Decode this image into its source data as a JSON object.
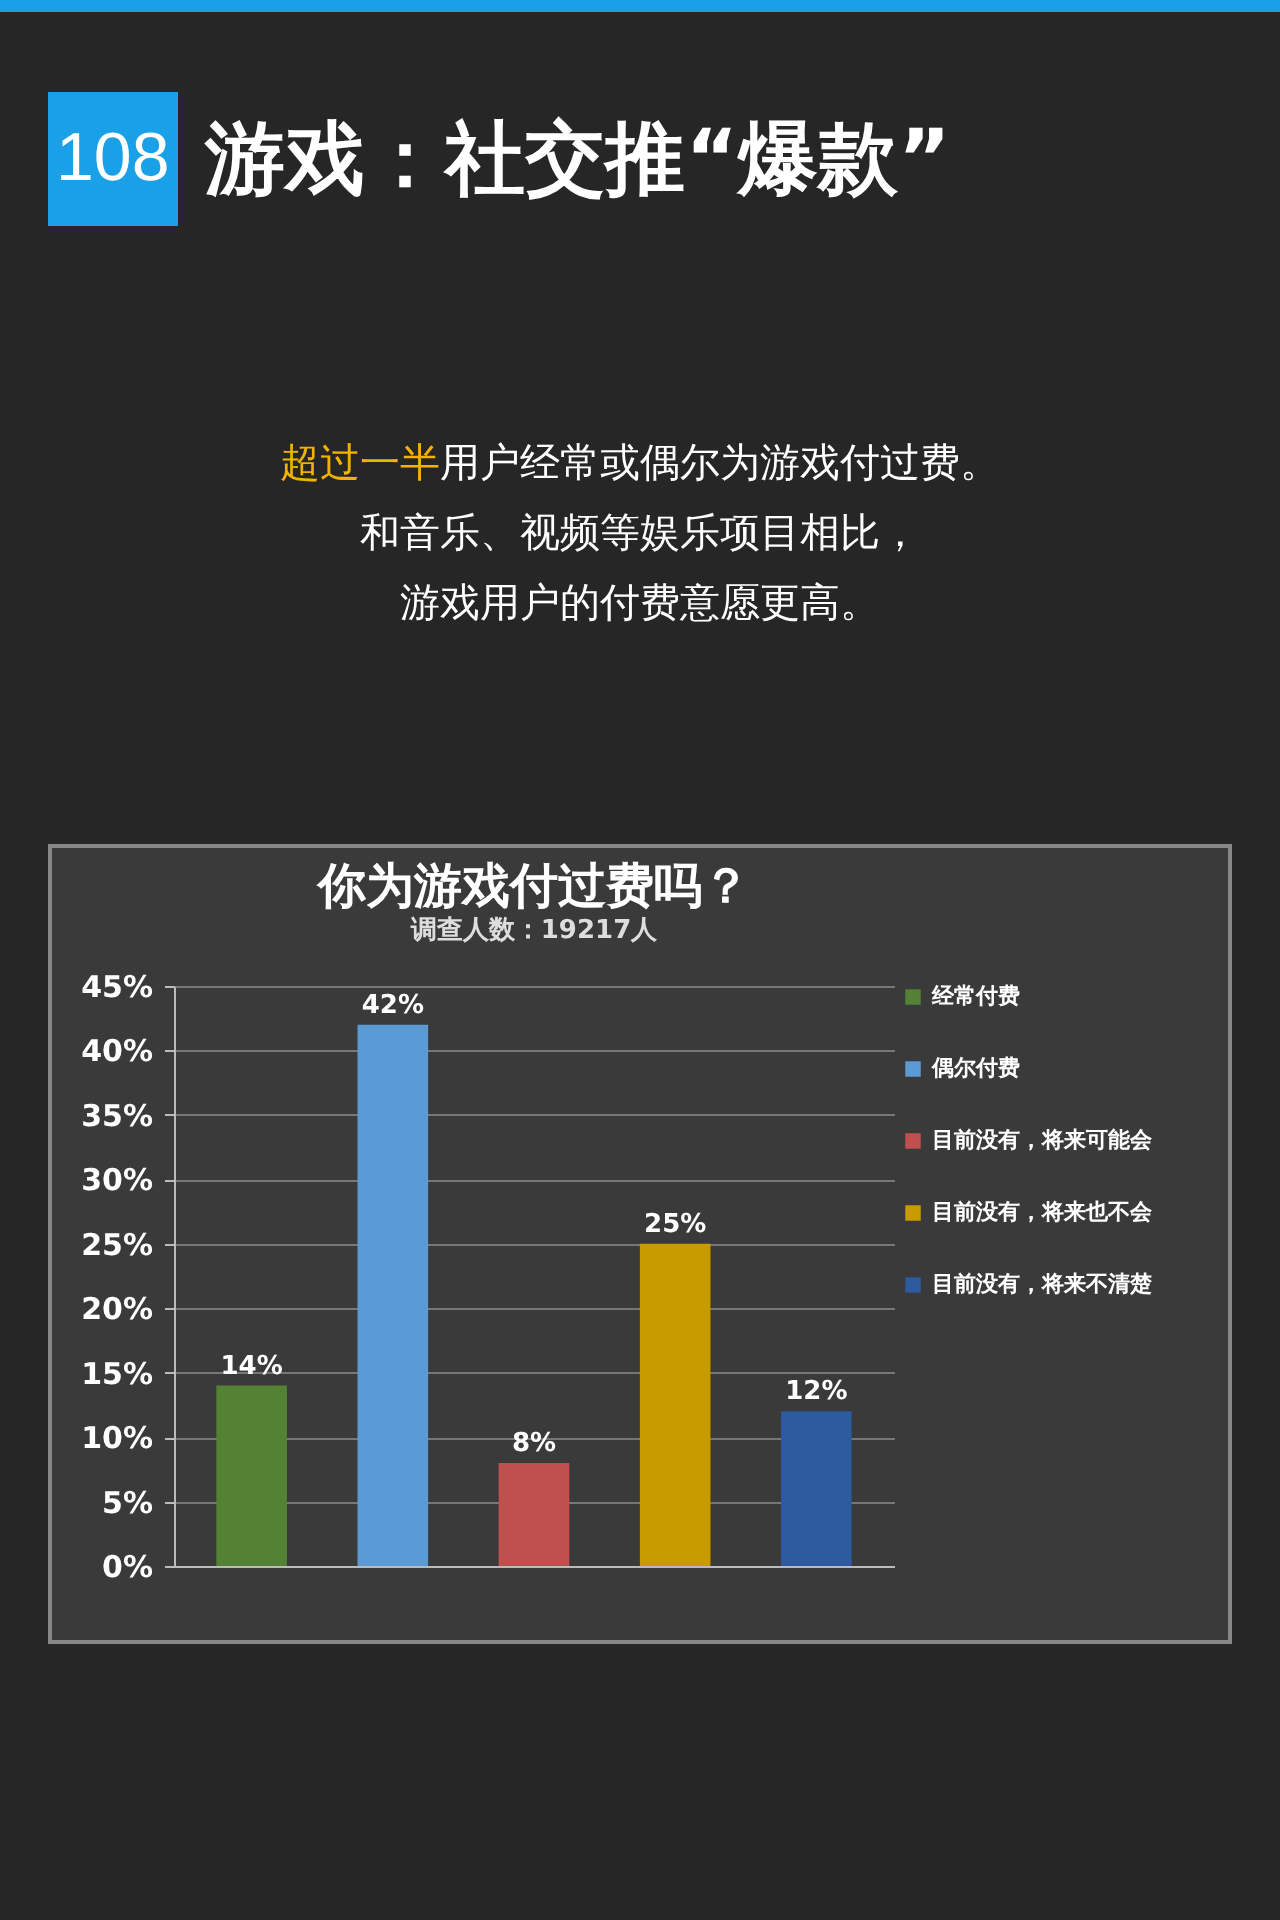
{
  "chart_data": {
    "type": "bar",
    "title": "你为游戏付过费吗？",
    "subtitle": "调查人数：19217人",
    "annotations": [
      "108",
      "游戏：社交推“爆款”",
      "超过一半",
      "用户经常或偶尔为游戏付过费。",
      "和音乐、视频等娱乐项目相比，",
      "游戏用户的付费意愿更高。"
    ],
    "categories": [
      null
    ],
    "series": [
      {
        "name": "经常付费",
        "color": "#548235",
        "values": [
          14
        ],
        "value_labels": [
          "14%"
        ]
      },
      {
        "name": "偶尔付费",
        "color": "#5b9bd5",
        "values": [
          42
        ],
        "value_labels": [
          "42%"
        ]
      },
      {
        "name": "目前没有，将来可能会",
        "color": "#c0504d",
        "values": [
          8
        ],
        "value_labels": [
          "8%"
        ]
      },
      {
        "name": "目前没有，将来也不会",
        "color": "#c89b00",
        "values": [
          25
        ],
        "value_labels": [
          "25%"
        ]
      },
      {
        "name": "目前没有，将来不清楚",
        "color": "#2e5aa0",
        "values": [
          12
        ],
        "value_labels": [
          "12%"
        ]
      }
    ],
    "ylim": [
      0,
      45
    ],
    "yticks": [
      {
        "value": 0,
        "label": "0%"
      },
      {
        "value": 5,
        "label": "5%"
      },
      {
        "value": 10,
        "label": "10%"
      },
      {
        "value": 15,
        "label": "15%"
      },
      {
        "value": 20,
        "label": "20%"
      },
      {
        "value": 25,
        "label": "25%"
      },
      {
        "value": 30,
        "label": "30%"
      },
      {
        "value": 35,
        "label": "35%"
      },
      {
        "value": 40,
        "label": "40%"
      },
      {
        "value": 45,
        "label": "45%"
      }
    ],
    "grid": "y",
    "legend": "right",
    "tick_labels": "y"
  }
}
